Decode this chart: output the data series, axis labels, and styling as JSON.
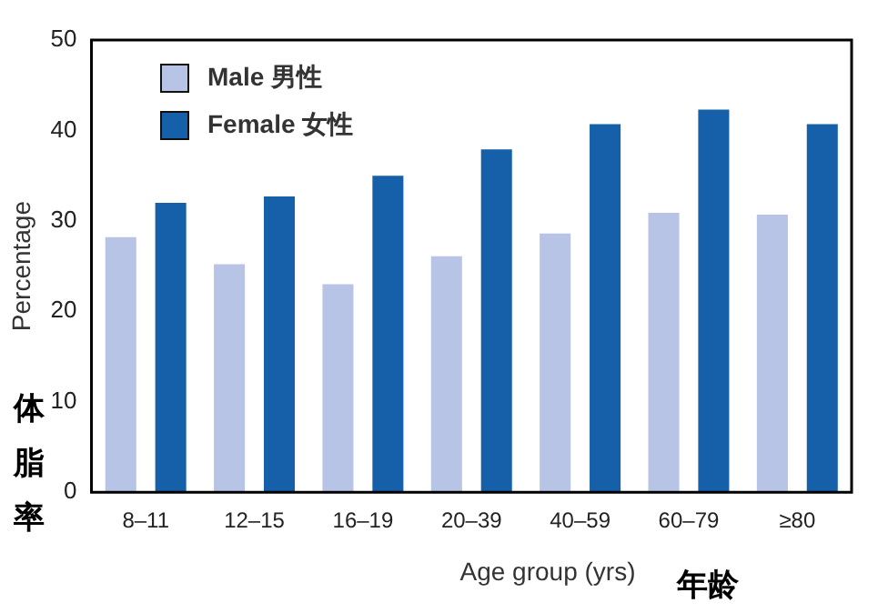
{
  "chart_data": {
    "type": "bar",
    "xlabel": "Age group (yrs)",
    "ylabel": "Percentage",
    "annotations": [
      "体脂率",
      "年龄"
    ],
    "categories": [
      "8–11",
      "12–15",
      "16–19",
      "20–39",
      "40–59",
      "60–79",
      "≥80"
    ],
    "series": [
      {
        "name": "Male 男性",
        "color": "#b8c4e6",
        "values": [
          28.2,
          25.2,
          23.0,
          26.1,
          28.6,
          30.9,
          30.7
        ]
      },
      {
        "name": "Female 女性",
        "color": "#1560a8",
        "values": [
          32.0,
          32.7,
          35.0,
          37.9,
          40.7,
          42.3,
          40.7
        ]
      }
    ],
    "ylim": [
      0,
      50
    ],
    "yticks": [
      0,
      10,
      20,
      30,
      40,
      50
    ],
    "grid": false,
    "legend": "top left"
  }
}
